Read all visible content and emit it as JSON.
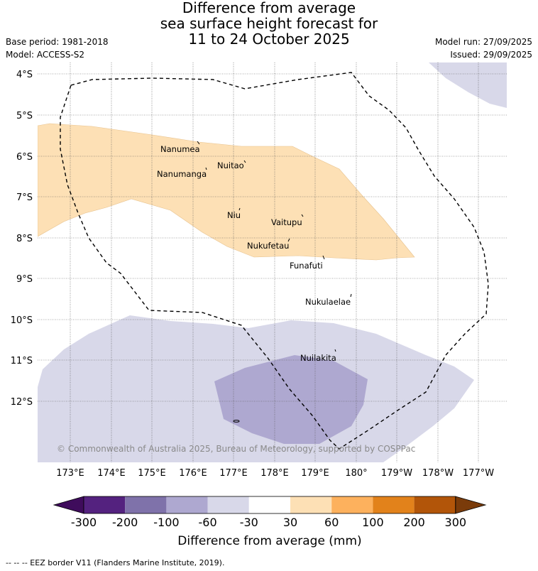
{
  "title": {
    "line1": "Difference from average",
    "line2": "sea surface height forecast for",
    "line3": "11 to 24 October 2025"
  },
  "meta": {
    "base_period": "Base period: 1981-2018",
    "model": "Model: ACCESS-S2",
    "model_run": "Model run: 27/09/2025",
    "issued": "Issued: 29/09/2025"
  },
  "axes": {
    "lat_labels": [
      "4°S",
      "5°S",
      "6°S",
      "7°S",
      "8°S",
      "9°S",
      "10°S",
      "11°S",
      "12°S"
    ],
    "lon_labels": [
      "173°E",
      "174°E",
      "175°E",
      "176°E",
      "177°E",
      "178°E",
      "179°E",
      "180°",
      "179°W",
      "178°W",
      "177°W"
    ]
  },
  "places": [
    {
      "name": "Nanumea"
    },
    {
      "name": "Nuitao"
    },
    {
      "name": "Nanumanga"
    },
    {
      "name": "Niu"
    },
    {
      "name": "Vaitupu"
    },
    {
      "name": "Nukufetau"
    },
    {
      "name": "Funafuti"
    },
    {
      "name": "Nukulaelae"
    },
    {
      "name": "Nuilakita"
    }
  ],
  "copyright": "© Commonwealth of Australia 2025, Bureau of Meteorology, supported by COSPPac",
  "colorbar": {
    "title": "Difference from average (mm)",
    "ticks": [
      "-300",
      "-200",
      "-100",
      "-60",
      "-30",
      "30",
      "60",
      "100",
      "200",
      "300"
    ],
    "colors": [
      "#3f0c5c",
      "#54227f",
      "#7f72aa",
      "#aea8d0",
      "#d8d8e9",
      "#ffffff",
      "#fde0b5",
      "#fdb15d",
      "#e2821b",
      "#b25509",
      "#7a3b0a"
    ]
  },
  "footnote": "--  --  -- EEZ border V11 (Flanders Marine Institute, 2019)."
}
